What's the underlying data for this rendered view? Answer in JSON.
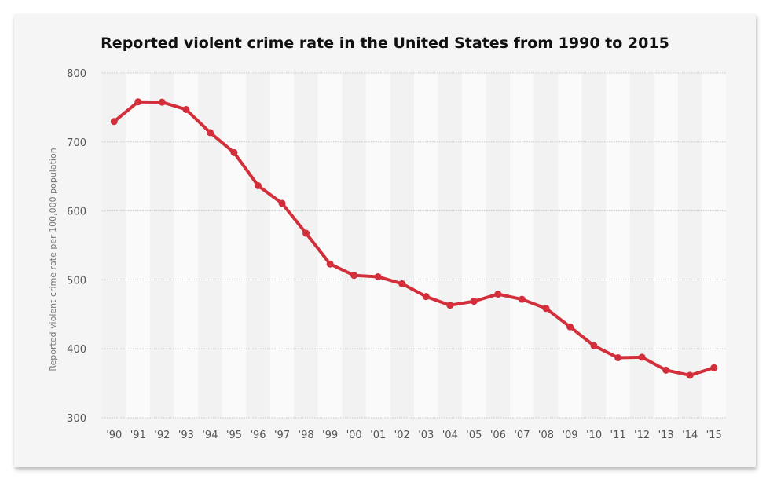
{
  "chart_data": {
    "type": "line",
    "title": "Reported violent crime rate in the United States from 1990 to 2015",
    "ylabel": "Reported violent crime rate per 100,000 population",
    "xlabel": "",
    "categories": [
      "'90",
      "'91",
      "'92",
      "'93",
      "'94",
      "'95",
      "'96",
      "'97",
      "'98",
      "'99",
      "'00",
      "'01",
      "'02",
      "'03",
      "'04",
      "'05",
      "'06",
      "'07",
      "'08",
      "'09",
      "'10",
      "'11",
      "'12",
      "'13",
      "'14",
      "'15"
    ],
    "values": [
      729.6,
      758.2,
      757.7,
      747.1,
      713.6,
      684.5,
      636.6,
      611.0,
      567.6,
      523.0,
      506.5,
      504.5,
      494.4,
      475.8,
      463.2,
      469.0,
      479.3,
      471.8,
      458.6,
      431.9,
      404.5,
      387.1,
      387.8,
      369.1,
      361.6,
      372.6
    ],
    "ylim": [
      300,
      800
    ],
    "yticks": [
      300,
      400,
      500,
      600,
      700,
      800
    ],
    "grid": true,
    "series_color": "#d22f3b"
  }
}
